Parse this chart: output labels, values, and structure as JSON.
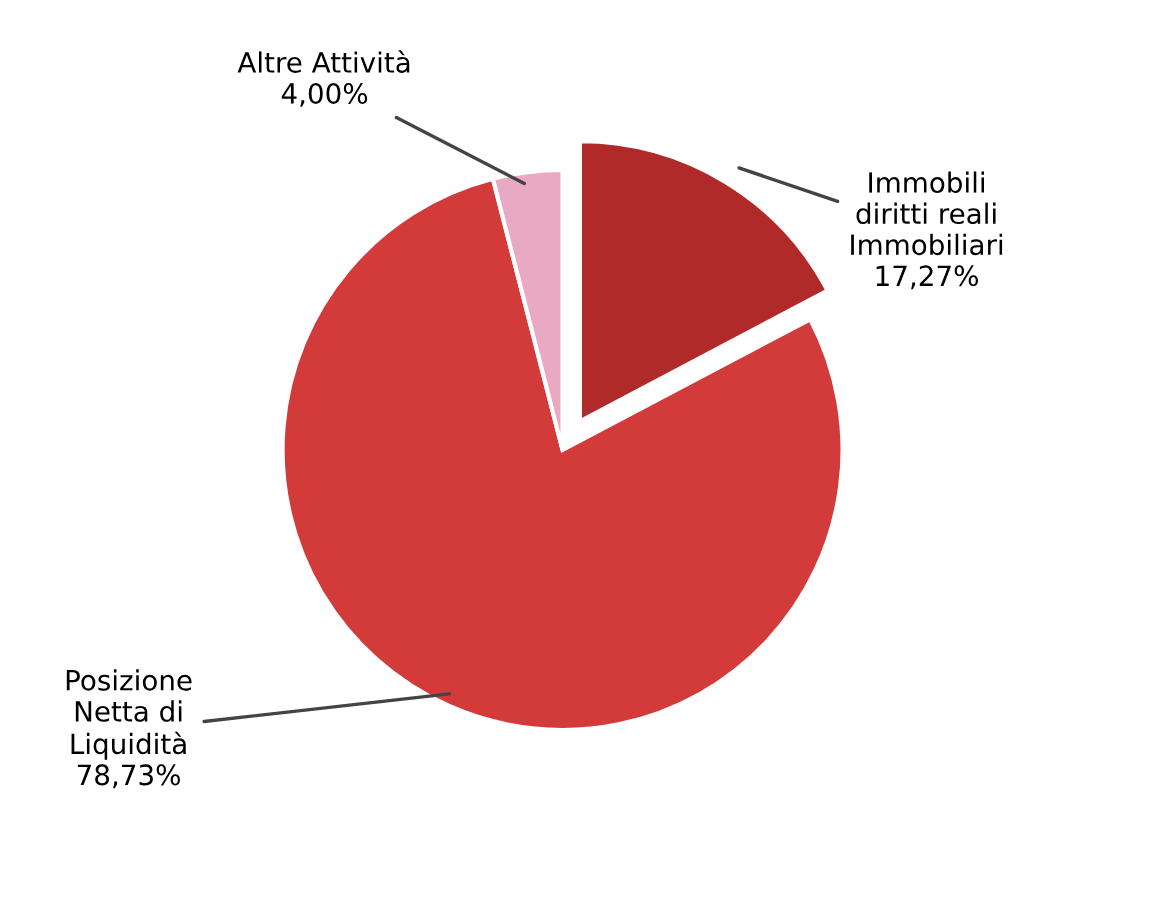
{
  "chart_data": {
    "type": "pie",
    "categories": [
      "Immobili\ndiritti reali\nImmobiliari",
      "Posizione\nNetta di\nLiquidità",
      "Altre Attività"
    ],
    "values": [
      17.27,
      78.73,
      4.0
    ],
    "value_labels": [
      "17,27%",
      "78,73%",
      "4,00%"
    ],
    "colors": [
      "#b02a2a",
      "#d33b3b",
      "#e9a9c2"
    ],
    "legend": false
  }
}
